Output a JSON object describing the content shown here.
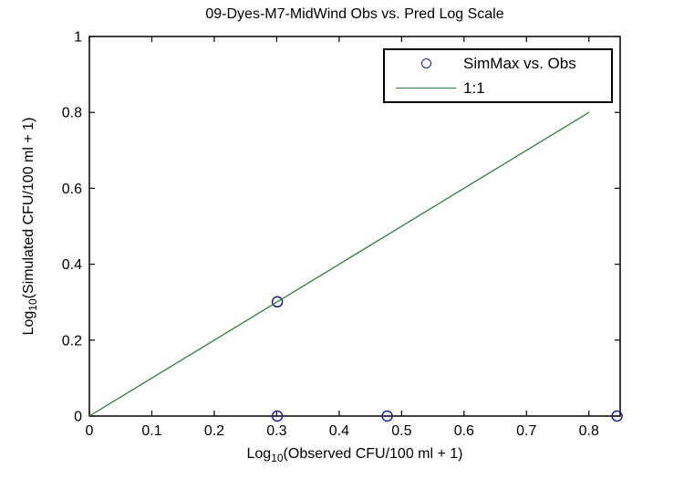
{
  "figure": {
    "title": "09-Dyes-M7-MidWind Obs vs. Pred Log Scale",
    "background_color": "#ffffff",
    "axis_color": "#000000"
  },
  "chart_data": {
    "type": "scatter",
    "title": "09-Dyes-M7-MidWind Obs vs. Pred Log Scale",
    "xlabel": {
      "prefix": "Log",
      "sub": "10",
      "rest": "(Observed CFU/100 ml + 1)"
    },
    "ylabel": {
      "prefix": "Log",
      "sub": "10",
      "rest": "(Simulated CFU/100 ml + 1)"
    },
    "xlim": [
      0,
      0.85
    ],
    "ylim": [
      0,
      1
    ],
    "x_ticks": [
      0,
      0.1,
      0.2,
      0.3,
      0.4,
      0.5,
      0.6,
      0.7,
      0.8
    ],
    "x_tick_labels": [
      "0",
      "0.1",
      "0.2",
      "0.3",
      "0.4",
      "0.5",
      "0.6",
      "0.7",
      "0.8"
    ],
    "y_ticks": [
      0,
      0.2,
      0.4,
      0.6,
      0.8,
      1
    ],
    "y_tick_labels": [
      "0",
      "0.2",
      "0.4",
      "0.6",
      "0.8",
      "1"
    ],
    "grid": false,
    "legend_position": "top-right",
    "series": [
      {
        "name": "SimMax vs. Obs",
        "type": "scatter",
        "marker": "circle",
        "color": "#20208e",
        "points": [
          [
            0.301,
            0.301
          ],
          [
            0.301,
            0
          ],
          [
            0.477,
            0
          ],
          [
            0.845,
            0
          ]
        ]
      },
      {
        "name": "1:1",
        "type": "line",
        "color": "#2e7d3a",
        "points": [
          [
            0,
            0
          ],
          [
            0.8,
            0.8
          ]
        ]
      }
    ]
  }
}
